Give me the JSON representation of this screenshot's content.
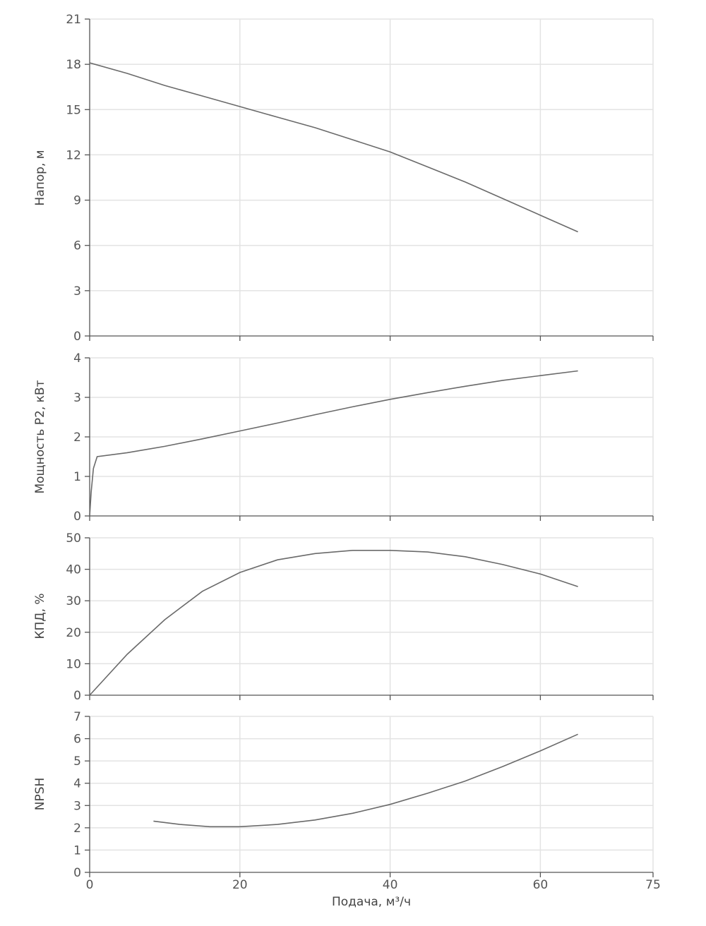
{
  "chart_data": [
    {
      "type": "line",
      "ylabel": "Напор, м",
      "xlim": [
        0,
        75
      ],
      "ylim": [
        0,
        21
      ],
      "x_ticks": [
        0,
        20,
        40,
        60,
        75
      ],
      "y_ticks": [
        0,
        3,
        6,
        9,
        12,
        15,
        18,
        21
      ],
      "grid": true,
      "series": [
        {
          "x": [
            0,
            5,
            10,
            15,
            20,
            25,
            30,
            35,
            40,
            45,
            50,
            55,
            60,
            65
          ],
          "y": [
            18.1,
            17.4,
            16.6,
            15.9,
            15.2,
            14.5,
            13.8,
            13.0,
            12.2,
            11.2,
            10.2,
            9.1,
            8.0,
            6.9
          ]
        }
      ]
    },
    {
      "type": "line",
      "ylabel": "Мощность P2, кВт",
      "xlim": [
        0,
        75
      ],
      "ylim": [
        0,
        4
      ],
      "x_ticks": [
        0,
        20,
        40,
        60,
        75
      ],
      "y_ticks": [
        0,
        1,
        2,
        3,
        4
      ],
      "grid": true,
      "series": [
        {
          "x": [
            0,
            0.2,
            0.5,
            1,
            5,
            10,
            15,
            20,
            25,
            30,
            35,
            40,
            45,
            50,
            55,
            60,
            65
          ],
          "y": [
            0,
            0.6,
            1.2,
            1.5,
            1.6,
            1.76,
            1.95,
            2.15,
            2.35,
            2.56,
            2.76,
            2.95,
            3.12,
            3.28,
            3.43,
            3.55,
            3.67
          ]
        }
      ]
    },
    {
      "type": "line",
      "ylabel": "КПД, %",
      "xlim": [
        0,
        75
      ],
      "ylim": [
        0,
        50
      ],
      "x_ticks": [
        0,
        20,
        40,
        60,
        75
      ],
      "y_ticks": [
        0,
        10,
        20,
        30,
        40,
        50
      ],
      "grid": true,
      "series": [
        {
          "x": [
            0,
            5,
            10,
            15,
            20,
            25,
            30,
            35,
            40,
            45,
            50,
            55,
            60,
            65
          ],
          "y": [
            0,
            13,
            24,
            33,
            39,
            43,
            45,
            46,
            46,
            45.5,
            44,
            41.5,
            38.5,
            34.5
          ]
        }
      ]
    },
    {
      "type": "line",
      "ylabel": "NPSH",
      "xlabel": "Подача, м³/ч",
      "xlim": [
        0,
        75
      ],
      "ylim": [
        0,
        7
      ],
      "x_ticks": [
        0,
        20,
        40,
        60,
        75
      ],
      "y_ticks": [
        0,
        1,
        2,
        3,
        4,
        5,
        6,
        7
      ],
      "grid": true,
      "series": [
        {
          "x": [
            8.5,
            12,
            16,
            20,
            25,
            30,
            35,
            40,
            45,
            50,
            55,
            60,
            65
          ],
          "y": [
            2.3,
            2.15,
            2.05,
            2.05,
            2.15,
            2.35,
            2.65,
            3.05,
            3.55,
            4.1,
            4.75,
            5.45,
            6.2
          ]
        }
      ]
    }
  ]
}
